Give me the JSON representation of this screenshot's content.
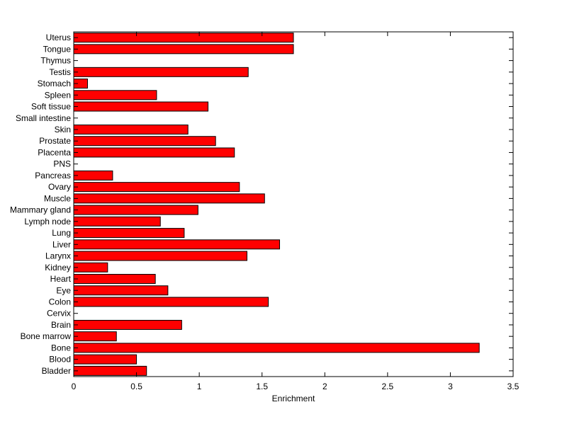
{
  "chart_data": {
    "type": "bar",
    "orientation": "horizontal",
    "title": "",
    "xlabel": "Enrichment",
    "ylabel": "",
    "xlim": [
      0,
      3.5
    ],
    "xticks": [
      0,
      0.5,
      1,
      1.5,
      2,
      2.5,
      3,
      3.5
    ],
    "xtick_labels": [
      "0",
      "0.5",
      "1",
      "1.5",
      "2",
      "2.5",
      "3",
      "3.5"
    ],
    "grid": false,
    "bar_color": "#ff0000",
    "categories": [
      "Bladder",
      "Blood",
      "Bone",
      "Bone marrow",
      "Brain",
      "Cervix",
      "Colon",
      "Eye",
      "Heart",
      "Kidney",
      "Larynx",
      "Liver",
      "Lung",
      "Lymph node",
      "Mammary gland",
      "Muscle",
      "Ovary",
      "Pancreas",
      "PNS",
      "Placenta",
      "Prostate",
      "Skin",
      "Small intestine",
      "Soft tissue",
      "Spleen",
      "Stomach",
      "Testis",
      "Thymus",
      "Tongue",
      "Uterus"
    ],
    "values": [
      0.58,
      0.5,
      3.23,
      0.34,
      0.86,
      0,
      1.55,
      0.75,
      0.65,
      0.27,
      1.38,
      1.64,
      0.88,
      0.69,
      0.99,
      1.52,
      1.32,
      0.31,
      0,
      1.28,
      1.13,
      0.91,
      0,
      1.07,
      0.66,
      0.11,
      1.39,
      0,
      1.75,
      1.75
    ]
  }
}
